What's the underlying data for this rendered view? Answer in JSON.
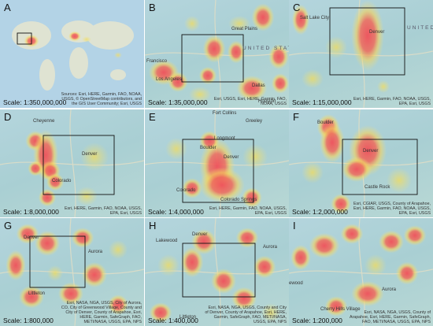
{
  "panels": [
    {
      "letter": "A",
      "labels": [],
      "scale": "Scale: 1:350,000,000",
      "attribution": "Sources: Esri, HERE, Garmin, FAO, NOAA, USGS, © OpenStreetMap contributors, and the GIS User Community; Esri, USGS"
    },
    {
      "letter": "B",
      "labels": [
        "Great Plains",
        "UNITED STATES",
        "Francisco",
        "Los Angeles",
        "Dallas",
        "Houston"
      ],
      "scale": "Scale: 1:35,000,000",
      "attribution": "Esri, USGS, Esri, HERE, Garmin, FAO, NOAA, USGS"
    },
    {
      "letter": "C",
      "labels": [
        "Salt Lake City",
        "Denver",
        "UNITED STATES"
      ],
      "scale": "Scale: 1:15,000,000",
      "attribution": "Esri, HERE, Garmin, FAO, NOAA, USGS, EPA, Esri, USGS"
    },
    {
      "letter": "D",
      "labels": [
        "Cheyenne",
        "Denver",
        "Colorado"
      ],
      "scale": "Scale: 1:8,000,000",
      "attribution": "Esri, HERE, Garmin, FAO, NOAA, USGS, EPA, Esri, USGS"
    },
    {
      "letter": "E",
      "labels": [
        "Fort Collins",
        "Greeley",
        "Longmont",
        "Boulder",
        "Denver",
        "Colorado",
        "Colorado Springs"
      ],
      "scale": "Scale: 1:4,000,000",
      "attribution": "Esri, HERE, Garmin, FAO, NOAA, USGS, EPA, Esri, USGS"
    },
    {
      "letter": "F",
      "labels": [
        "Boulder",
        "Denver",
        "Castle Rock"
      ],
      "scale": "Scale: 1:2,000,000",
      "attribution": "Esri, CGIAR, USGS, County of Arapahoe, Esri, HERE, Garmin, FAO, NOAA, USGS, EPA, Esri, USGS"
    },
    {
      "letter": "G",
      "labels": [
        "Denver",
        "Aurora",
        "Littleton"
      ],
      "scale": "Scale: 1:800,000",
      "attribution": "Esri, NASA, NGA, USGS, City of Aurora, CO, City of Greenwood Village, County and City of Denver, County of Arapahoe, Esri, HERE, Garmin, SafeGraph, FAO, METI/NASA, USGS, EPA, NPS"
    },
    {
      "letter": "H",
      "labels": [
        "Lakewood",
        "Denver",
        "Aurora",
        "Littleton"
      ],
      "scale": "Scale: 1:400,000",
      "attribution": "Esri, NASA, NGA, USGS, County and City of Denver, County of Arapahoe, Esri, HERE, Garmin, SafeGraph, FAO, METI/NASA, USGS, EPA, NPS"
    },
    {
      "letter": "I",
      "labels": [
        "Aurora",
        "Cherry Hills Village",
        "ewood"
      ],
      "scale": "Scale: 1:200,000",
      "attribution": "Esri, NASA, NGA, USGS, County of Arapahoe, Esri, HERE, Garmin, SafeGraph, FAO, METI/NASA, USGS, EPA, NPS"
    }
  ]
}
